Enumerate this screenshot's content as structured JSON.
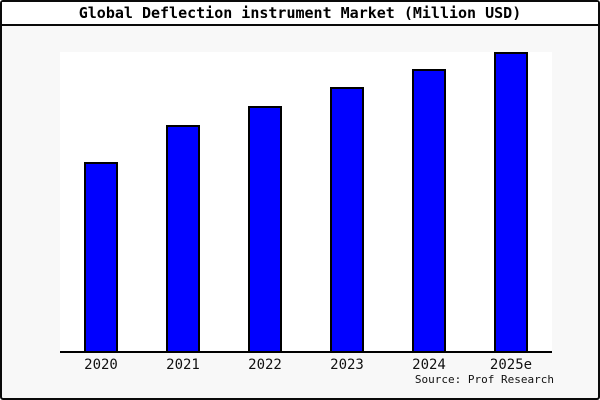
{
  "title_bar": {
    "title": "Global Deflection instrument Market (Million USD)"
  },
  "footer": {
    "source": "Source: Prof Research"
  },
  "chart_data": {
    "type": "bar",
    "title": "Global Deflection instrument Market (Million USD)",
    "categories": [
      "2020",
      "2021",
      "2022",
      "2023",
      "2024",
      "2025e"
    ],
    "values_pct_of_max": [
      63.2,
      75.6,
      82.0,
      88.3,
      94.3,
      100
    ],
    "values_note": "No y-axis scale or data labels shown in image; values are bar heights relative to tallest bar (2025e = 100)",
    "xlabel": "",
    "ylabel": "",
    "y_axis_ticks_shown": false,
    "grid": false,
    "legend": false,
    "source": "Source: Prof Research",
    "colors": {
      "bar_fill": "#0000ff",
      "bar_border": "#000000",
      "plot_background": "#ffffff",
      "canvas_background": "#f8f8f8",
      "frame_border": "#0a0a0a",
      "text": "#000000"
    }
  }
}
